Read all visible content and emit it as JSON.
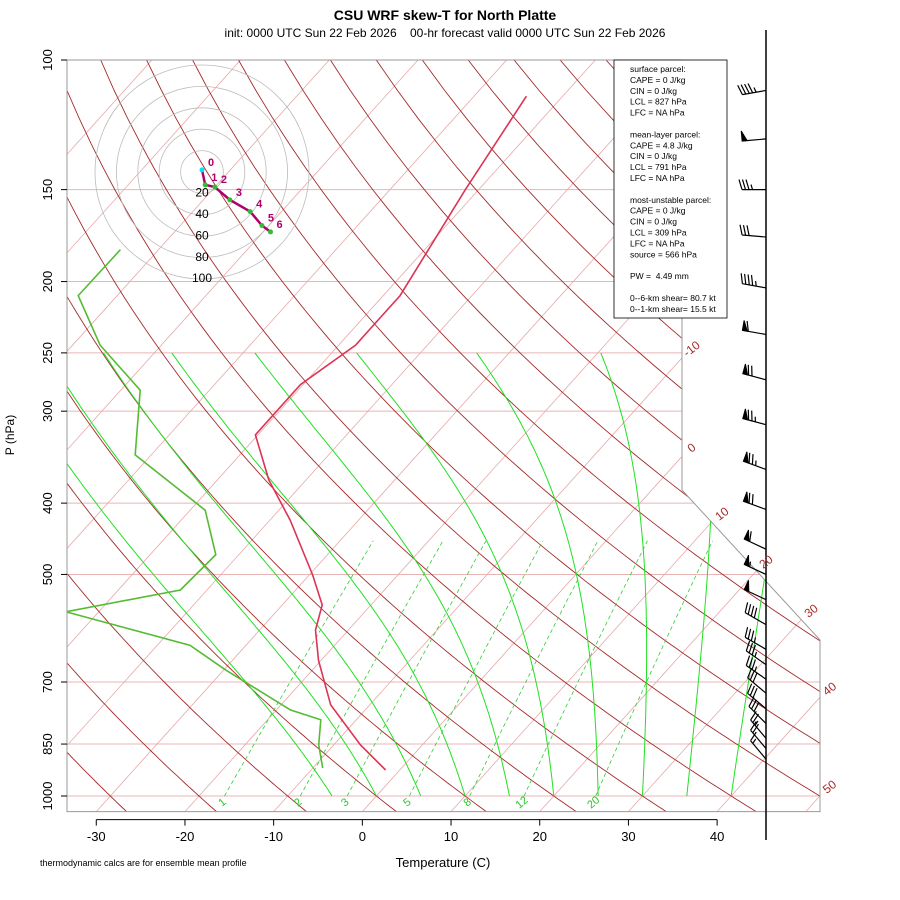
{
  "chart_data": {
    "type": "skewt",
    "title": "CSU WRF skew-T for North Platte",
    "subtitle": "init: 0000 UTC Sun 22 Feb 2026    00-hr forecast valid 0000 UTC Sun 22 Feb 2026",
    "xlabel": "Temperature (C)",
    "ylabel": "P (hPa)",
    "footnote": "thermodynamic calcs are for ensemble mean profile",
    "xlim": [
      -33.3,
      51.6
    ],
    "xticks": [
      -30,
      -20,
      -10,
      0,
      10,
      20,
      30,
      40
    ],
    "ylim": [
      1050,
      100
    ],
    "yticks": [
      100,
      150,
      200,
      250,
      300,
      400,
      500,
      700,
      850,
      1000
    ],
    "log_scale_y": true,
    "isotherms": [
      -110,
      -100,
      -90,
      -80,
      -70,
      -60,
      -50,
      -40,
      -30,
      -20,
      -10,
      0,
      10,
      20,
      30,
      40,
      50
    ],
    "isotherm_labels": [
      -10,
      0,
      10,
      20,
      30,
      40,
      50
    ],
    "dry_adiabats": [
      -30,
      -20,
      -10,
      0,
      10,
      20,
      30,
      40,
      50,
      60,
      70,
      80,
      90,
      100,
      110,
      120,
      130,
      140,
      150,
      160,
      170
    ],
    "moist_adiabats": [
      -5,
      0,
      5,
      10,
      15,
      20,
      25,
      30,
      35,
      40
    ],
    "mixing_ratios": [
      1,
      2,
      3,
      5,
      8,
      12,
      20
    ],
    "temperature": {
      "color": "#dd3355",
      "pressure": [
        922,
        852,
        752,
        654,
        595,
        550,
        501,
        422,
        372,
        323,
        276,
        244,
        209,
        150,
        112
      ],
      "values": [
        -1.6,
        -7.0,
        -14.4,
        -20.3,
        -23.7,
        -25.5,
        -29.6,
        -37.7,
        -44.2,
        -50.3,
        -50.3,
        -48.1,
        -48.1,
        -51.5,
        -54.1
      ]
    },
    "dewpoint": {
      "color": "#55bb33",
      "pressure": [
        916,
        852,
        788,
        764,
        674,
        624,
        562,
        525,
        470,
        409,
        344,
        281,
        244,
        209,
        181
      ],
      "values": [
        -8.9,
        -11.7,
        -14.0,
        -18.4,
        -29.8,
        -36.3,
        -53.7,
        -43.0,
        -42.6,
        -48.3,
        -61.8,
        -67.8,
        -76.9,
        -84.4,
        -84.3
      ]
    },
    "wind_barbs": {
      "pressure": [
        110,
        128,
        150,
        174,
        204,
        236,
        272,
        313,
        360,
        408,
        462,
        500,
        541,
        585,
        632,
        663,
        694,
        725,
        761,
        797,
        835,
        862,
        891
      ],
      "speed": [
        45,
        50,
        35,
        30,
        45,
        60,
        70,
        75,
        75,
        70,
        60,
        55,
        50,
        40,
        35,
        35,
        35,
        30,
        30,
        30,
        25,
        20,
        15
      ],
      "direction": [
        260,
        265,
        270,
        275,
        280,
        280,
        285,
        285,
        290,
        290,
        295,
        295,
        295,
        300,
        300,
        305,
        305,
        310,
        310,
        315,
        320,
        320,
        320
      ]
    },
    "hodograph": {
      "rings": [
        20,
        40,
        60,
        80,
        100
      ],
      "color": "#b0006e",
      "u": [
        0,
        3,
        12,
        26,
        45,
        56,
        64
      ],
      "v": [
        2,
        -12,
        -14,
        -26,
        -37,
        -50,
        -56
      ],
      "heights": [
        0,
        1,
        2,
        3,
        4,
        5,
        6
      ]
    },
    "stats": [
      [
        "surface parcel:",
        "CAPE = 0 J/kg",
        "CIN = 0 J/kg",
        "LCL = 827 hPa",
        "LFC = NA hPa"
      ],
      [
        "mean-layer parcel:",
        "CAPE = 4.8 J/kg",
        "CIN = 0 J/kg",
        "LCL = 791 hPa",
        "LFC = NA hPa"
      ],
      [
        "most-unstable parcel:",
        "CAPE = 0 J/kg",
        "CIN = 0 J/kg",
        "LCL = 309 hPa",
        "LFC = NA hPa",
        "source = 566 hPa"
      ],
      [
        "PW =  4.49 mm"
      ],
      [
        "0--6-km shear= 80.7 kt",
        "0--1-km shear= 15.5 kt"
      ]
    ]
  }
}
